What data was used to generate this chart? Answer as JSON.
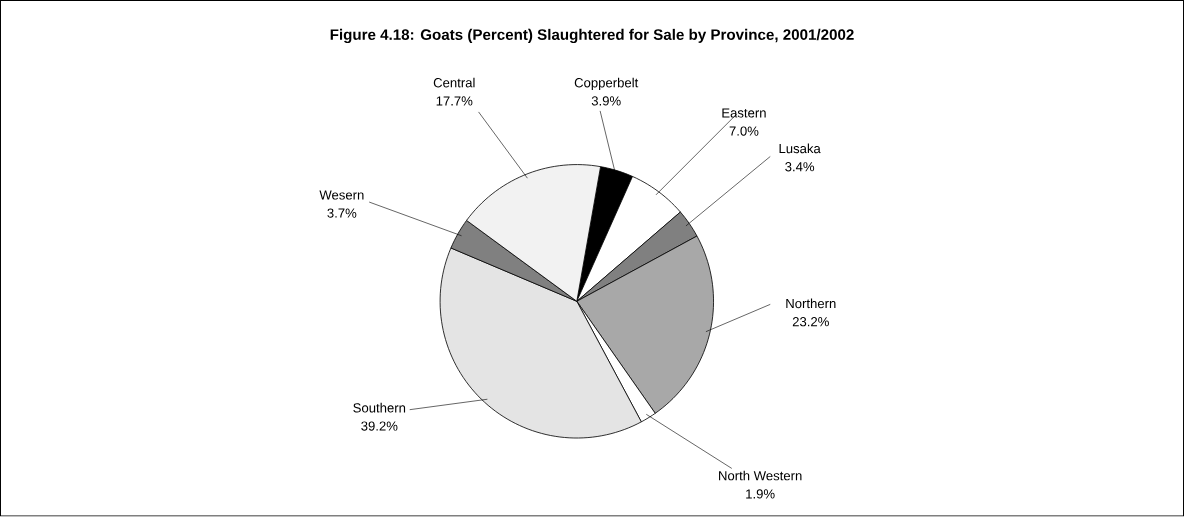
{
  "chart_data": {
    "type": "pie",
    "title": "Figure 4.18: Goats (Percent) Slaughtered for Sale by Province, 2001/2002",
    "categories": [
      "Copperbelt",
      "Eastern",
      "Lusaka",
      "Northern",
      "North Western",
      "Southern",
      "Wesern",
      "Central"
    ],
    "values": [
      3.9,
      7.0,
      3.4,
      23.2,
      1.9,
      39.2,
      3.7,
      17.7
    ],
    "colors": [
      "#000000",
      "#ffffff",
      "#808080",
      "#a8a8a8",
      "#ffffff",
      "#e4e4e4",
      "#808080",
      "#f2f2f2"
    ],
    "value_labels": [
      "3.9%",
      "7.0%",
      "3.4%",
      "23.2%",
      "1.9%",
      "39.2%",
      "3.7%",
      "17.7%"
    ]
  }
}
